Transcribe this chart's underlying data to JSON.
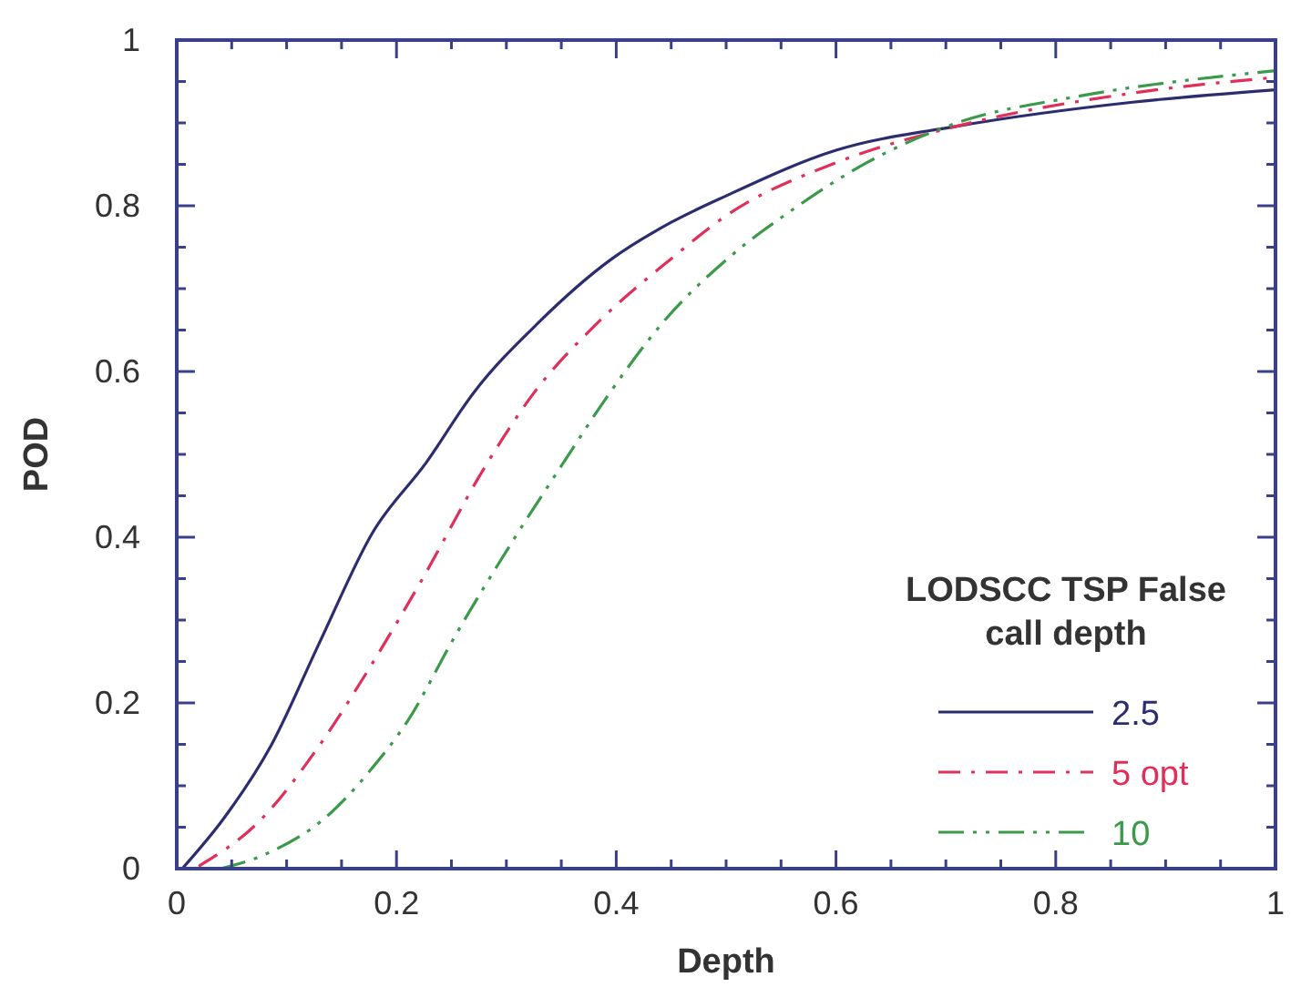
{
  "chart_data": {
    "type": "line",
    "xlabel": "Depth",
    "ylabel": "POD",
    "legend_title": "LODSCC TSP False call depth",
    "legend": "bottom right",
    "grid": false,
    "xlim": [
      0,
      1
    ],
    "ylim": [
      0,
      1
    ],
    "xticks": [
      0,
      {
        "value": 0.05,
        "label": null
      },
      {
        "value": 0.1,
        "label": null
      },
      {
        "value": 0.15,
        "label": null
      },
      0.2,
      {
        "value": 0.25,
        "label": null
      },
      {
        "value": 0.3,
        "label": null
      },
      {
        "value": 0.35,
        "label": null
      },
      0.4,
      {
        "value": 0.45,
        "label": null
      },
      {
        "value": 0.5,
        "label": null
      },
      {
        "value": 0.55,
        "label": null
      },
      0.6,
      {
        "value": 0.65,
        "label": null
      },
      {
        "value": 0.7,
        "label": null
      },
      {
        "value": 0.75,
        "label": null
      },
      0.8,
      {
        "value": 0.85,
        "label": null
      },
      {
        "value": 0.9,
        "label": null
      },
      {
        "value": 0.95,
        "label": null
      },
      1
    ],
    "yticks": [
      0,
      {
        "value": 0.05,
        "label": null
      },
      {
        "value": 0.1,
        "label": null
      },
      {
        "value": 0.15,
        "label": null
      },
      0.2,
      {
        "value": 0.25,
        "label": null
      },
      {
        "value": 0.3,
        "label": null
      },
      {
        "value": 0.35,
        "label": null
      },
      0.4,
      {
        "value": 0.45,
        "label": null
      },
      {
        "value": 0.5,
        "label": null
      },
      {
        "value": 0.55,
        "label": null
      },
      0.6,
      {
        "value": 0.65,
        "label": null
      },
      {
        "value": 0.7,
        "label": null
      },
      {
        "value": 0.75,
        "label": null
      },
      0.8,
      {
        "value": 0.85,
        "label": null
      },
      {
        "value": 0.9,
        "label": null
      },
      {
        "value": 0.95,
        "label": null
      },
      1
    ],
    "series": [
      {
        "name": "2.5",
        "color": "#2b2d6e",
        "line_style": "solid",
        "x": [
          0.005,
          0.043,
          0.086,
          0.13,
          0.178,
          0.227,
          0.27,
          0.33,
          0.395,
          0.45,
          0.5,
          0.6,
          0.71,
          0.87,
          1.0
        ],
        "values": [
          0,
          0.061,
          0.149,
          0.273,
          0.405,
          0.49,
          0.574,
          0.66,
          0.735,
          0.78,
          0.812,
          0.867,
          0.896,
          0.925,
          0.94
        ]
      },
      {
        "name": "5 opt",
        "color": "#e0305a",
        "line_style": "dashed",
        "x": [
          0.02,
          0.075,
          0.13,
          0.173,
          0.222,
          0.281,
          0.325,
          0.384,
          0.449,
          0.5,
          0.6,
          0.71,
          0.87,
          1.0
        ],
        "values": [
          0.003,
          0.057,
          0.149,
          0.237,
          0.346,
          0.486,
          0.574,
          0.66,
          0.735,
          0.788,
          0.852,
          0.896,
          0.936,
          0.955
        ]
      },
      {
        "name": "10",
        "color": "#3a9a4a",
        "line_style": "dotted",
        "x": [
          0.04,
          0.08,
          0.14,
          0.177,
          0.21,
          0.253,
          0.307,
          0.35,
          0.394,
          0.443,
          0.503,
          0.558,
          0.628,
          0.71,
          0.82,
          1.0
        ],
        "values": [
          0,
          0.017,
          0.067,
          0.12,
          0.178,
          0.28,
          0.398,
          0.486,
          0.574,
          0.66,
          0.738,
          0.793,
          0.852,
          0.9,
          0.932,
          0.963
        ]
      }
    ]
  }
}
